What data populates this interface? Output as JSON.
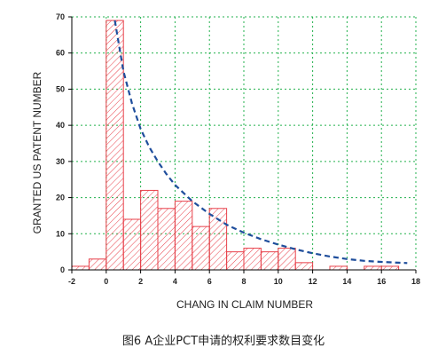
{
  "chart_data": {
    "type": "bar",
    "subtype": "histogram-with-fitted-curve",
    "bins": [
      {
        "from": -2,
        "to": -1,
        "value": 1
      },
      {
        "from": -1,
        "to": 0,
        "value": 3
      },
      {
        "from": 0,
        "to": 1,
        "value": 69
      },
      {
        "from": 1,
        "to": 2,
        "value": 14
      },
      {
        "from": 2,
        "to": 3,
        "value": 22
      },
      {
        "from": 3,
        "to": 4,
        "value": 17
      },
      {
        "from": 4,
        "to": 5,
        "value": 19
      },
      {
        "from": 5,
        "to": 6,
        "value": 12
      },
      {
        "from": 6,
        "to": 7,
        "value": 17
      },
      {
        "from": 7,
        "to": 8,
        "value": 5
      },
      {
        "from": 8,
        "to": 9,
        "value": 6
      },
      {
        "from": 9,
        "to": 10,
        "value": 5
      },
      {
        "from": 10,
        "to": 11,
        "value": 6
      },
      {
        "from": 11,
        "to": 12,
        "value": 2
      },
      {
        "from": 12,
        "to": 13,
        "value": 0
      },
      {
        "from": 13,
        "to": 14,
        "value": 1
      },
      {
        "from": 14,
        "to": 15,
        "value": 0
      },
      {
        "from": 15,
        "to": 16,
        "value": 1
      },
      {
        "from": 16,
        "to": 17,
        "value": 1
      }
    ],
    "fit_curve": {
      "style": "dashed",
      "color": "#1f4e9c",
      "points": [
        [
          0.5,
          69
        ],
        [
          1,
          55
        ],
        [
          1.5,
          46
        ],
        [
          2,
          39
        ],
        [
          2.5,
          34
        ],
        [
          3,
          30
        ],
        [
          3.5,
          26.5
        ],
        [
          4,
          23.5
        ],
        [
          5,
          19
        ],
        [
          6,
          15.5
        ],
        [
          7,
          12.5
        ],
        [
          8,
          10.3
        ],
        [
          9,
          8.5
        ],
        [
          10,
          7
        ],
        [
          11,
          5.7
        ],
        [
          12,
          4.6
        ],
        [
          13,
          3.7
        ],
        [
          14,
          3
        ],
        [
          15,
          2.5
        ],
        [
          16,
          2.2
        ],
        [
          17,
          2
        ],
        [
          17.5,
          1.9
        ]
      ]
    },
    "xlabel": "CHANG IN CLAIM NUMBER",
    "ylabel": "GRANTED US PATENT NUMBER",
    "xlim": [
      -2,
      18
    ],
    "ylim": [
      0,
      70
    ],
    "xticks": [
      -2,
      0,
      2,
      4,
      6,
      8,
      10,
      12,
      14,
      16,
      18
    ],
    "yticks": [
      0,
      10,
      20,
      30,
      40,
      50,
      60,
      70
    ],
    "grid": true,
    "grid_color": "#22b14c",
    "bar_color": "#e8404a"
  },
  "caption": "图6 A企业PCT申请的权利要求数目变化"
}
